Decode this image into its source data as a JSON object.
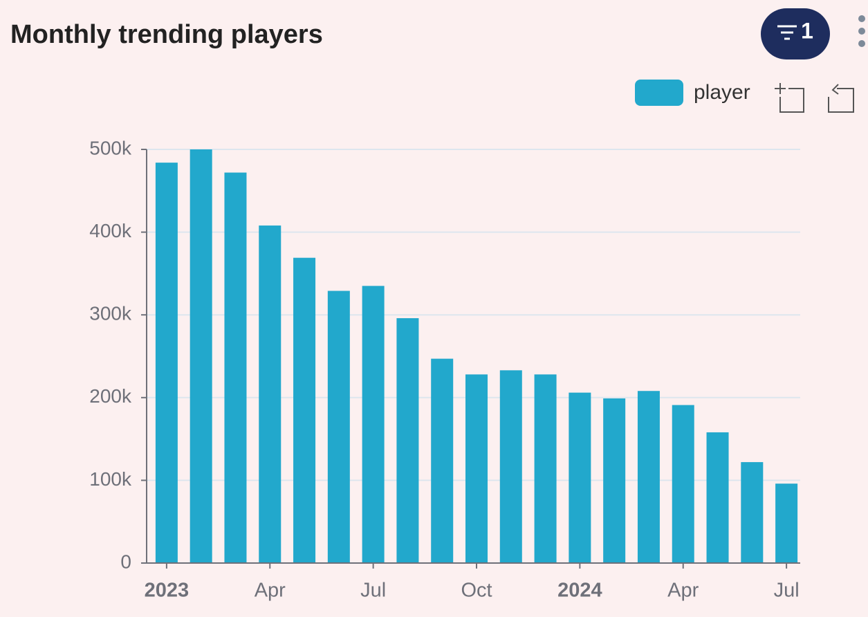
{
  "chart_data": {
    "type": "bar",
    "title": "Monthly trending players",
    "filter_count": "1",
    "categories": [
      "2023",
      null,
      null,
      "Apr",
      null,
      null,
      "Jul",
      null,
      null,
      "Oct",
      null,
      null,
      "2024",
      null,
      null,
      "Apr",
      null,
      null,
      "Jul"
    ],
    "series": [
      {
        "name": "player",
        "color": "#22a8cc",
        "values": [
          484000,
          500000,
          472000,
          408000,
          369000,
          329000,
          335000,
          296000,
          247000,
          228000,
          233000,
          228000,
          206000,
          199000,
          208000,
          191000,
          158000,
          122000,
          96000
        ]
      }
    ],
    "ylim": [
      0,
      500000
    ],
    "yticks": [
      0,
      {
        "value": 100000,
        "label": "100k"
      },
      {
        "value": 200000,
        "label": "200k"
      },
      {
        "value": 300000,
        "label": "300k"
      },
      {
        "value": 400000,
        "label": "400k"
      },
      {
        "value": 500000,
        "label": "500k"
      }
    ],
    "grid": true
  }
}
